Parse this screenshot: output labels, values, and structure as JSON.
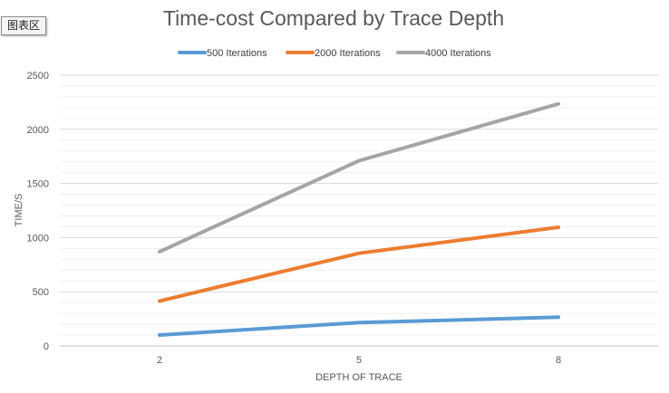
{
  "chart_area_label": "图表区",
  "chart_data": {
    "type": "line",
    "title": "Time-cost Compared by Trace Depth",
    "xlabel": "DEPTH OF TRACE",
    "ylabel": "TIME/S",
    "categories": [
      "2",
      "5",
      "8"
    ],
    "ylim": [
      0,
      2500
    ],
    "yticks": [
      0,
      500,
      1000,
      1500,
      2000,
      2500
    ],
    "grid": "horizontal",
    "legend_position": "top",
    "series": [
      {
        "name": "500  Iterations",
        "color": "#5b9bd5",
        "values": [
          100,
          215,
          265
        ]
      },
      {
        "name": "2000 Iterations",
        "color": "#ed7d31",
        "values": [
          415,
          855,
          1095
        ]
      },
      {
        "name": "4000 Iterations",
        "color": "#a5a5a5",
        "values": [
          870,
          1710,
          2235
        ]
      }
    ]
  }
}
